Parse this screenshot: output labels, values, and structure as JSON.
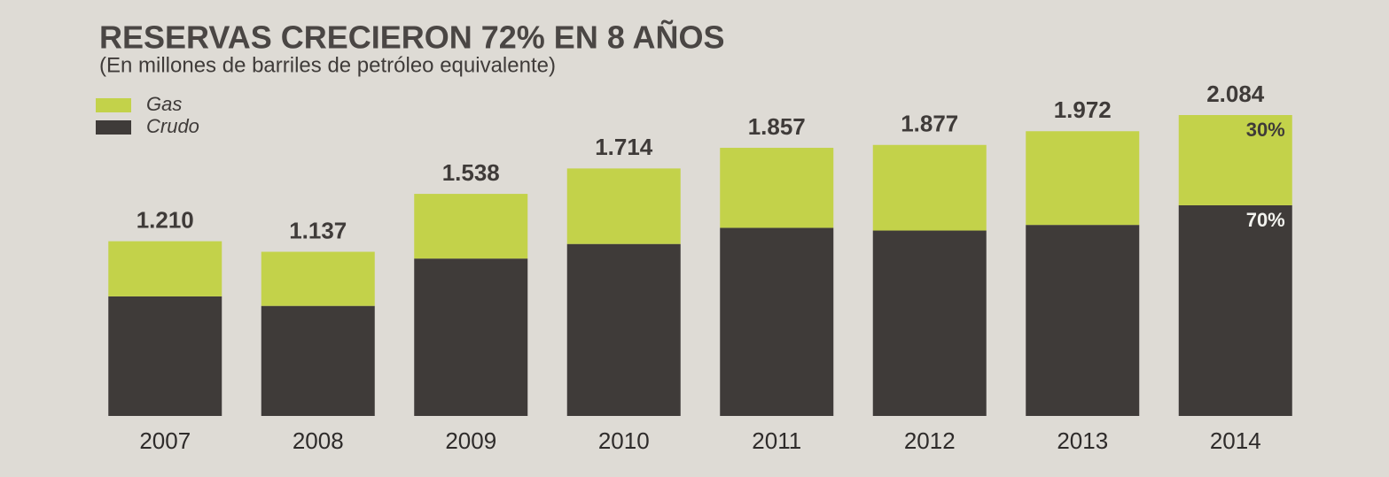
{
  "chart_data": {
    "type": "stacked-bar",
    "title": "RESERVAS CRECIERON 72% EN 8 AÑOS",
    "subtitle": "(En millones de barriles de petróleo equivalente)",
    "categories": [
      "2007",
      "2008",
      "2009",
      "2010",
      "2011",
      "2012",
      "2013",
      "2014"
    ],
    "series": [
      {
        "name": "Gas",
        "color": "#c3d24a",
        "values": [
          382,
          375,
          448,
          523,
          554,
          593,
          649,
          625
        ]
      },
      {
        "name": "Crudo",
        "color": "#3f3b39",
        "values": [
          828,
          762,
          1090,
          1191,
          1303,
          1284,
          1323,
          1459
        ]
      }
    ],
    "totals": {
      "values": [
        1210,
        1137,
        1538,
        1714,
        1857,
        1877,
        1972,
        2084
      ],
      "value_labels": [
        "1.210",
        "1.137",
        "1.538",
        "1.714",
        "1.857",
        "1.877",
        "1.972",
        "2.084"
      ]
    },
    "annotations": [
      "30%",
      "70%"
    ],
    "legend": "top-left"
  }
}
